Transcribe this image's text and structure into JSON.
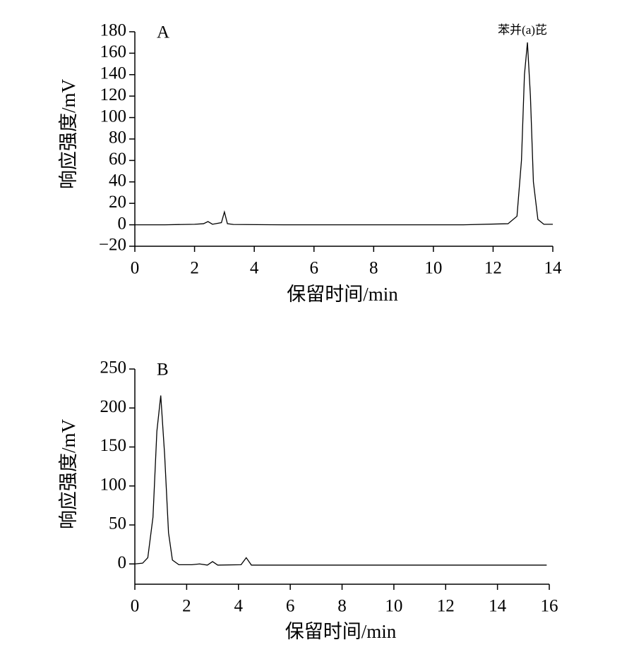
{
  "chart_data": [
    {
      "type": "line",
      "panel_label": "A",
      "annotation": "苯并(a)芘",
      "x_label": "保留时间/min",
      "y_label": "响应强度/mV",
      "color": "#000000",
      "xlim": [
        0,
        14
      ],
      "ylim": [
        -20,
        180
      ],
      "xticks": [
        0,
        2,
        4,
        6,
        8,
        10,
        12,
        14
      ],
      "yticks": [
        {
          "value": -20,
          "label": "−20"
        },
        0,
        20,
        40,
        60,
        80,
        100,
        120,
        140,
        160,
        180
      ],
      "x": [
        0,
        1,
        2,
        2.3,
        2.45,
        2.6,
        2.9,
        3.0,
        3.1,
        3.3,
        5,
        8,
        11,
        12.5,
        12.8,
        12.95,
        13.05,
        13.15,
        13.25,
        13.35,
        13.5,
        13.7,
        14
      ],
      "values": [
        0,
        0,
        0.5,
        1,
        3,
        0.5,
        2,
        12,
        1,
        0.3,
        0,
        0,
        0,
        1,
        8,
        60,
        140,
        170,
        120,
        40,
        5,
        0.5,
        0.5
      ]
    },
    {
      "type": "line",
      "panel_label": "B",
      "x_label": "保留时间/min",
      "y_label": "响应强度/mV",
      "color": "#000000",
      "xlim": [
        0,
        16
      ],
      "ylim": [
        -26,
        250
      ],
      "xticks": [
        0,
        2,
        4,
        6,
        8,
        10,
        12,
        14,
        16
      ],
      "yticks": [
        0,
        50,
        100,
        150,
        200,
        250
      ],
      "x": [
        0,
        0.3,
        0.5,
        0.7,
        0.85,
        1.0,
        1.15,
        1.3,
        1.45,
        1.7,
        2.2,
        2.5,
        2.8,
        3.0,
        3.2,
        4.1,
        4.3,
        4.5,
        6,
        10,
        15.9
      ],
      "values": [
        0,
        1,
        8,
        60,
        170,
        216,
        140,
        40,
        5,
        -1,
        -1,
        0,
        -1.5,
        3,
        -1.5,
        -1,
        8,
        -1.5,
        -1.5,
        -1.5,
        -1.5
      ]
    }
  ]
}
